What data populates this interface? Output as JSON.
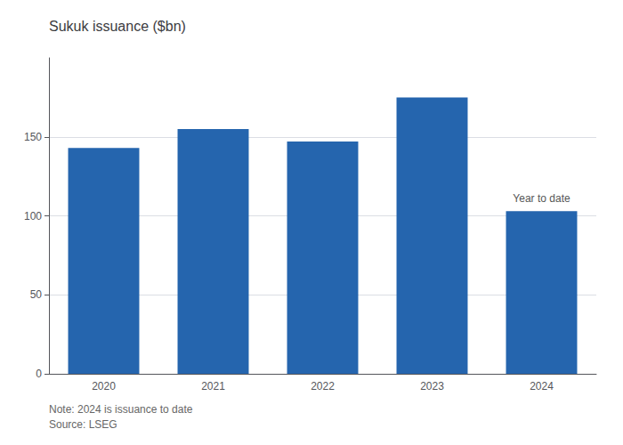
{
  "chart_data": {
    "type": "bar",
    "title": "Sukuk issuance ($bn)",
    "categories": [
      "2020",
      "2021",
      "2022",
      "2023",
      "2024"
    ],
    "values": [
      143,
      155,
      147,
      175,
      103
    ],
    "color": "#2565AE",
    "ylim": [
      0,
      200
    ],
    "yticks": [
      0,
      50,
      100,
      150
    ],
    "grid": true,
    "annotation": {
      "text": "Year to date",
      "category": "2024"
    },
    "notes": [
      "Note: 2024 is issuance to date",
      "Source: LSEG"
    ]
  }
}
